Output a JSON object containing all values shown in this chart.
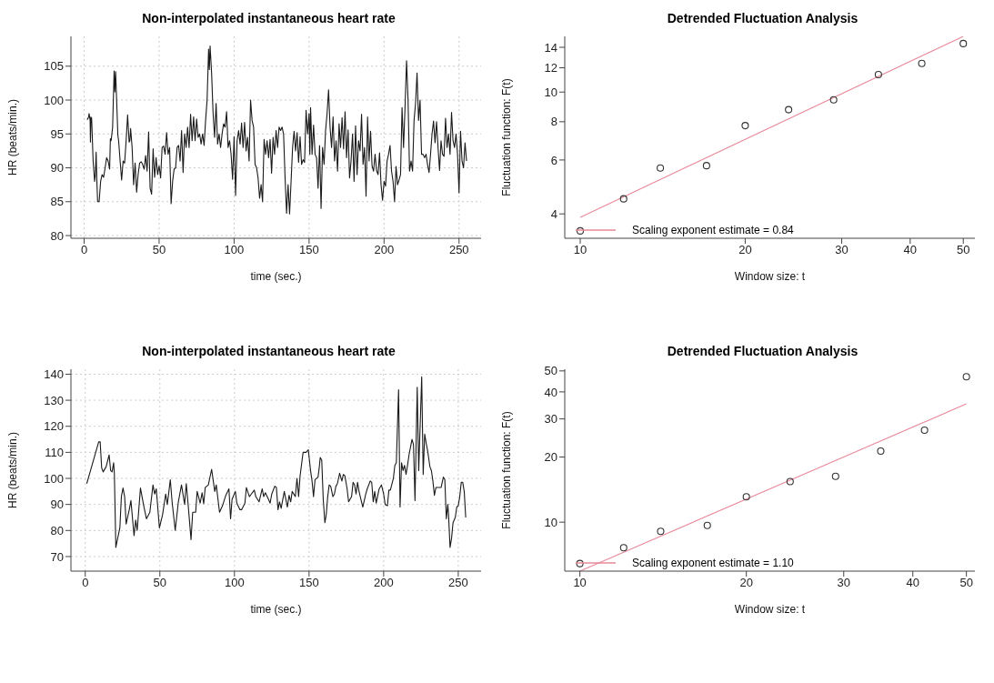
{
  "chart_data": [
    {
      "type": "line",
      "title": "Non-interpolated instantaneous heart rate",
      "xlabel": "time (sec.)",
      "ylabel": "HR (beats/min.)",
      "xlim": [
        -8.8,
        264.7
      ],
      "ylim": [
        79.6,
        109.4
      ],
      "xticks": [
        0,
        50,
        100,
        150,
        200,
        250
      ],
      "yticks": [
        80,
        85,
        90,
        95,
        100,
        105
      ],
      "grid": true,
      "series": [
        {
          "color": "#1a1a1a",
          "x": [
            2,
            3,
            3.3,
            4,
            4.2,
            4.5,
            5,
            6,
            7,
            7.5,
            8,
            8.5,
            9,
            10,
            11,
            12,
            13,
            14,
            15,
            16,
            17,
            17.5,
            18,
            19,
            20,
            20.5,
            21,
            22,
            22.5,
            23,
            24,
            25,
            26,
            27,
            28,
            29,
            30,
            30.5,
            31,
            32,
            33,
            34,
            35,
            36,
            37,
            38,
            39,
            40,
            41,
            42,
            43,
            44,
            45,
            46,
            47,
            48,
            49,
            50,
            51,
            52,
            53,
            54,
            55,
            56,
            57,
            58,
            59,
            60,
            61,
            62,
            63,
            64,
            65,
            66,
            67,
            68,
            69,
            70,
            71,
            72,
            73,
            74,
            75,
            76,
            77,
            78,
            79,
            80,
            81,
            82,
            83,
            83.5,
            84,
            85,
            86,
            87,
            88,
            89,
            90,
            91,
            92,
            93,
            94,
            95,
            96,
            97,
            98,
            99,
            100,
            101,
            102,
            103,
            104,
            105,
            106,
            107,
            108,
            109,
            110,
            111,
            112,
            113,
            114,
            115,
            116,
            117,
            118,
            119,
            120,
            121,
            122,
            123,
            124,
            125,
            126,
            127,
            128,
            129,
            130,
            131,
            132,
            133,
            134,
            135,
            136,
            137,
            138,
            139,
            140,
            141,
            142,
            143,
            144,
            145,
            146,
            147,
            148,
            149,
            150,
            150.5,
            151,
            152,
            153,
            154,
            155,
            156,
            157,
            158,
            159,
            160,
            161,
            162,
            163,
            164,
            165,
            166,
            167,
            168,
            169,
            170,
            171,
            172,
            173,
            174,
            175,
            176,
            177,
            178,
            179,
            180,
            181,
            182,
            183,
            184,
            185,
            186,
            187,
            188,
            189,
            190,
            191,
            192,
            193,
            194,
            195,
            196,
            197,
            198,
            199,
            200,
            201,
            202,
            203,
            204,
            205,
            206,
            207,
            208,
            209,
            210,
            211,
            212,
            213,
            214,
            215,
            216,
            217,
            218,
            219,
            220,
            221,
            222,
            223,
            224,
            225,
            226,
            227,
            228,
            229,
            230,
            231,
            232,
            233,
            234,
            235,
            236,
            237,
            238,
            239,
            240,
            241,
            242,
            243,
            244,
            245,
            246,
            247,
            248,
            249,
            250,
            251,
            252,
            253,
            254,
            255
          ],
          "values": [
            97.1,
            97.5,
            98,
            97,
            93.8,
            97.5,
            97.3,
            91,
            88,
            89,
            92.3,
            88,
            85,
            85,
            88,
            89,
            88.6,
            90,
            91.5,
            91,
            89.8,
            94.3,
            94,
            96,
            104.3,
            101.2,
            104.2,
            98,
            94.8,
            94,
            91,
            88.2,
            91,
            90.7,
            94,
            97.8,
            93.8,
            94,
            95.8,
            93,
            87.5,
            90.7,
            86.4,
            89,
            90.7,
            90.9,
            90.5,
            89.8,
            91.8,
            89.5,
            95.3,
            87,
            86.1,
            92.8,
            88.6,
            91.5,
            89,
            90.3,
            88.5,
            93,
            93.2,
            92,
            95.2,
            92,
            93,
            84.7,
            88,
            89.8,
            90,
            93,
            93.3,
            91,
            95.5,
            89.3,
            95,
            93,
            96,
            93,
            97.9,
            94,
            97.5,
            94,
            97.2,
            94.5,
            95,
            93.5,
            95,
            93.3,
            97,
            100,
            107.5,
            104.5,
            108,
            104,
            98,
            94.5,
            99.5,
            93.5,
            95,
            93,
            95,
            96.5,
            96,
            98.3,
            93,
            94,
            92,
            88.3,
            94.6,
            85.9,
            94,
            95.5,
            93.5,
            96.6,
            93,
            96.7,
            92.5,
            94.5,
            91,
            100,
            97,
            96,
            90.5,
            90,
            88.5,
            85.5,
            87.5,
            85,
            94.2,
            92,
            94,
            91.5,
            94.2,
            89.2,
            94.5,
            92,
            95.5,
            93,
            96,
            95.5,
            96,
            95,
            88.5,
            83.3,
            87.5,
            83.2,
            88,
            93,
            95.4,
            92.5,
            95.2,
            90.8,
            94.6,
            90.5,
            91.2,
            90.8,
            98.5,
            95,
            98,
            92,
            98.9,
            92,
            96.3,
            92,
            91.5,
            87,
            93.3,
            84,
            93,
            90.5,
            95.5,
            98,
            101.5,
            96,
            93,
            97.5,
            91,
            94,
            89.5,
            96.5,
            93,
            97.4,
            92.8,
            98.3,
            91.5,
            95.6,
            88.5,
            91,
            95,
            88,
            96.2,
            89,
            94,
            92.5,
            97.9,
            90.5,
            93,
            85.8,
            97.5,
            91,
            95.4,
            90.3,
            89.5,
            92,
            89.6,
            89,
            92.2,
            87.5,
            85.2,
            88,
            87.3,
            91,
            92,
            93.3,
            89.5,
            88,
            85,
            90.2,
            87.5,
            88.2,
            89,
            98.9,
            93,
            99,
            105.8,
            100,
            89.5,
            91,
            89.5,
            97,
            99.5,
            104,
            97,
            100,
            92,
            92,
            91.5,
            92,
            90.5,
            89.3,
            92,
            95,
            96.9,
            93.7,
            96.8,
            93,
            89.6,
            94,
            92,
            91.7,
            97.3,
            93,
            95,
            92,
            98.2,
            94,
            93,
            95,
            92,
            86.3,
            95.4,
            91,
            90,
            93.7,
            91
          ]
        }
      ]
    },
    {
      "type": "scatter",
      "title": "Detrended Fluctuation Analysis",
      "xlabel": "Window size: t",
      "ylabel": "Fluctuation function: F(t)",
      "log": "xy",
      "xlim": [
        9.37,
        52.5
      ],
      "ylim": [
        3.33,
        15.2
      ],
      "xticks": [
        10,
        20,
        30,
        40,
        50
      ],
      "yticks": [
        4,
        6,
        8,
        10,
        12,
        14
      ],
      "legend": "bottom left",
      "series": [
        {
          "marker": "circle",
          "color": "#333333",
          "x": [
            10,
            12,
            14,
            17,
            20,
            24,
            29,
            35,
            42,
            50
          ],
          "values": [
            3.52,
            4.48,
            5.65,
            5.75,
            7.77,
            8.76,
            9.43,
            11.4,
            12.4,
            14.4
          ]
        },
        {
          "type": "line",
          "name": "Scaling exponent estimate = 0.84",
          "color": "#e8899a",
          "x": [
            10,
            50
          ],
          "values": [
            3.9,
            15.2
          ]
        }
      ]
    },
    {
      "type": "line",
      "title": "Non-interpolated instantaneous heart rate",
      "xlabel": "time (sec.)",
      "ylabel": "HR (beats/min.)",
      "xlim": [
        -9.6,
        265.3
      ],
      "ylim": [
        64.4,
        141.9
      ],
      "xticks": [
        0,
        50,
        100,
        150,
        200,
        250
      ],
      "yticks": [
        70,
        80,
        90,
        100,
        110,
        120,
        130,
        140
      ],
      "grid": true,
      "series": [
        {
          "color": "#1a1a1a",
          "x": [
            1,
            3,
            5,
            7,
            9,
            10,
            11,
            12,
            14,
            16,
            17,
            18,
            19,
            19.5,
            20.5,
            21,
            23.2,
            24.2,
            25.3,
            26.4,
            27.4,
            29.5,
            30.6,
            32.7,
            33.8,
            34.8,
            37,
            39,
            41,
            43.3,
            45.4,
            46.5,
            47.6,
            49.7,
            51.8,
            53.9,
            55,
            57,
            58.2,
            60.3,
            62.4,
            64.5,
            66.6,
            67.7,
            68.8,
            70.9,
            72,
            74,
            75,
            77,
            78.3,
            79.4,
            80.4,
            82.5,
            84.7,
            86.8,
            87.8,
            90,
            92,
            94.2,
            96.3,
            97.4,
            98.4,
            100.6,
            101.6,
            103.7,
            104.8,
            107,
            108,
            110,
            111.3,
            113.3,
            114.3,
            116.5,
            118.6,
            119.6,
            120.7,
            122.8,
            123.9,
            125,
            127,
            128.1,
            129.2,
            130.2,
            131.3,
            133.4,
            135.5,
            136.6,
            137.7,
            138.7,
            140.8,
            141.9,
            143,
            144,
            146,
            148,
            149.5,
            151,
            152,
            153,
            154,
            156,
            156.8,
            157.5,
            158.5,
            159.5,
            160.6,
            161.5,
            162.5,
            163.5,
            164.5,
            166,
            167,
            168,
            169,
            170.5,
            172,
            173,
            174,
            175.5,
            176.5,
            178.5,
            179.5,
            180.5,
            181.5,
            182.5,
            183.5,
            186,
            188,
            189,
            191,
            192,
            193,
            194,
            195,
            197,
            198.5,
            200,
            201,
            202.5,
            203.5,
            204.5,
            206.5,
            207.5,
            208.5,
            210,
            211,
            212,
            213,
            214,
            215,
            216,
            217,
            218,
            219,
            220,
            221,
            222.5,
            223.5,
            225.5,
            226.5,
            227.5,
            228.5,
            229.5,
            231,
            232,
            233,
            234,
            235,
            237,
            238.5,
            240,
            241,
            242,
            243,
            243.5,
            244.5,
            245.5,
            246.5,
            248,
            249,
            250,
            251,
            252,
            253,
            254,
            255
          ],
          "values": [
            98,
            102,
            106,
            110,
            114,
            114,
            104,
            102.5,
            104.5,
            109,
            103,
            102.5,
            106,
            102,
            73.5,
            75,
            81,
            93,
            96.3,
            93,
            82.5,
            88,
            91.5,
            78,
            84,
            80,
            96.3,
            90,
            84.5,
            87,
            97.5,
            94,
            96,
            81,
            86,
            94,
            90,
            99.5,
            91,
            80,
            91,
            97.5,
            90,
            98,
            91,
            76.5,
            87,
            87,
            95,
            90.5,
            94.5,
            90.3,
            96.5,
            97.5,
            103.5,
            95,
            97.5,
            87,
            89.5,
            93.5,
            96,
            84.5,
            92,
            95,
            90.5,
            88,
            88,
            90.5,
            96.5,
            93,
            94,
            95.5,
            93,
            91,
            96,
            93,
            94.5,
            92,
            90.5,
            94,
            97,
            96.5,
            88,
            91,
            88.5,
            95,
            89,
            93.5,
            91,
            95,
            93,
            100,
            93,
            101,
            110,
            110,
            111,
            103,
            99,
            93,
            99.5,
            100.5,
            104,
            108,
            107,
            92,
            83,
            86,
            93,
            97.5,
            97,
            93,
            94,
            97,
            98,
            102,
            99,
            101.5,
            101,
            96,
            91,
            93,
            98.5,
            97.5,
            94,
            98.5,
            95,
            89,
            94,
            96,
            99,
            98.5,
            91,
            95,
            90.5,
            96,
            97.5,
            94,
            90,
            89.5,
            95.5,
            95.5,
            100,
            105,
            106,
            134,
            89,
            106,
            103,
            105,
            101.5,
            105,
            109,
            112,
            115,
            113,
            91.5,
            135,
            103,
            139,
            101.5,
            117,
            113.5,
            110.5,
            104.5,
            103,
            99,
            93.5,
            96.5,
            96.5,
            96.5,
            100.5,
            99.5,
            84.5,
            90,
            86,
            73.5,
            77,
            83,
            85,
            89,
            89.5,
            93,
            98.5,
            98.5,
            95,
            85
          ]
        }
      ]
    },
    {
      "type": "scatter",
      "title": "Detrended Fluctuation Analysis",
      "xlabel": "Window size: t",
      "ylabel": "Fluctuation function: F(t)",
      "log": "xy",
      "xlim": [
        9.39,
        51.8
      ],
      "ylim": [
        5.94,
        50.9
      ],
      "xticks": [
        10,
        20,
        30,
        40,
        50
      ],
      "yticks": [
        10,
        20,
        30,
        40,
        50
      ],
      "legend": "bottom left",
      "series": [
        {
          "marker": "circle",
          "color": "#333333",
          "x": [
            10,
            12,
            14,
            17,
            20,
            24,
            29,
            35,
            42,
            50
          ],
          "values": [
            6.44,
            7.62,
            9.07,
            9.66,
            13.1,
            15.4,
            16.3,
            21.3,
            26.6,
            47.0
          ]
        },
        {
          "type": "line",
          "name": "Scaling exponent estimate = 1.10",
          "color": "#e8899a",
          "x": [
            10,
            50
          ],
          "values": [
            5.94,
            35.2
          ]
        }
      ]
    }
  ]
}
